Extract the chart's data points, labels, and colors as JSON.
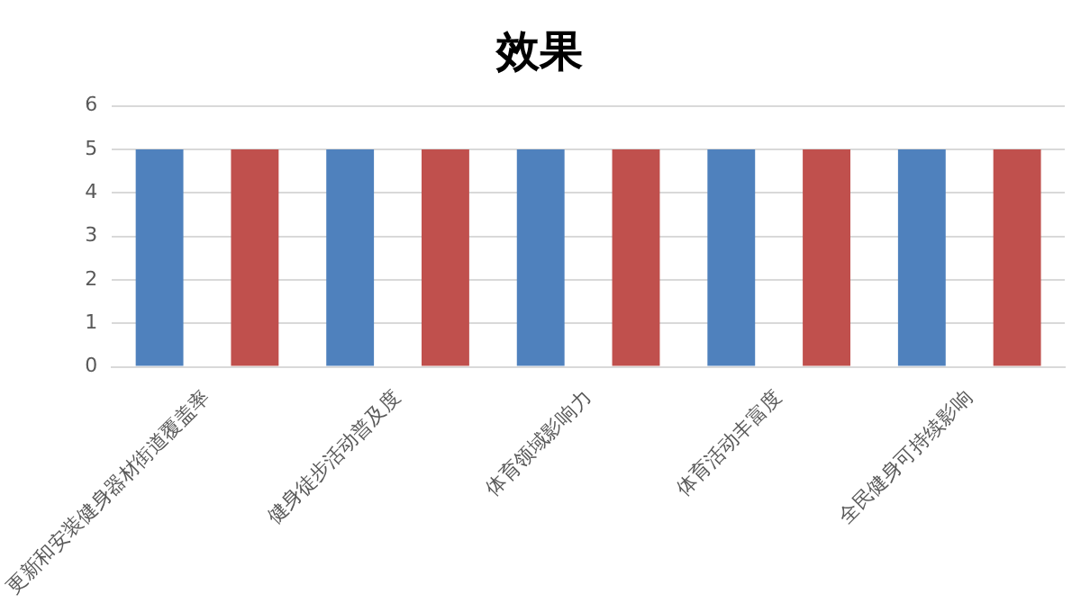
{
  "chart_data": {
    "type": "bar",
    "title": "效果",
    "categories": [
      "更新和安装健身器材街道覆盖率",
      "健身徒步活动普及度",
      "体育领域影响力",
      "体育活动丰富度",
      "全民健身可持续影响"
    ],
    "series": [
      {
        "color": "#4f81bd",
        "values": [
          5,
          5,
          5,
          5,
          5
        ]
      },
      {
        "color": "#c0504d",
        "values": [
          5,
          5,
          5,
          5,
          5
        ]
      }
    ],
    "ylim": [
      0,
      6
    ],
    "yticks": [
      0,
      1,
      2,
      3,
      4,
      5,
      6
    ],
    "grid": "y",
    "legend": false
  }
}
